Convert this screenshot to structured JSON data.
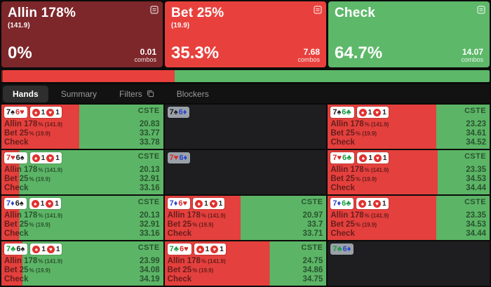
{
  "colors": {
    "allin": "#7d272b",
    "bet": "#e8413d",
    "check": "#5db869",
    "cell_red": "#e4403d",
    "cell_green": "#5cb566",
    "dim_cell": "#1e1e20",
    "suits": {
      "s": "#1a1a1a",
      "h": "#d92b2b",
      "d": "#2b46cc",
      "c": "#1a9c42"
    }
  },
  "suit_glyphs": {
    "s": "♠",
    "h": "♥",
    "d": "♦",
    "c": "♣"
  },
  "header": {
    "boxes": [
      {
        "action": "allin",
        "title": "Allin 178%",
        "subtitle": "(141.9)",
        "percent": "0%",
        "combos": "0.01",
        "combos_label": "combos",
        "color": "#7d272b"
      },
      {
        "action": "bet",
        "title": "Bet 25%",
        "subtitle": "(19.9)",
        "percent": "35.3%",
        "combos": "7.68",
        "combos_label": "combos",
        "color": "#e8413d"
      },
      {
        "action": "check",
        "title": "Check",
        "subtitle": "",
        "percent": "64.7%",
        "combos": "14.07",
        "combos_label": "combos",
        "color": "#5db869"
      }
    ],
    "strategy_bar": [
      {
        "action": "allin",
        "color": "#7d272b",
        "percent": 0.3
      },
      {
        "action": "bet",
        "color": "#e8413d",
        "percent": 35.2
      },
      {
        "action": "check",
        "color": "#5db869",
        "percent": 64.5
      }
    ]
  },
  "tabs": [
    {
      "label": "Hands",
      "active": true,
      "icon": ""
    },
    {
      "label": "Summary",
      "active": false,
      "icon": ""
    },
    {
      "label": "Filters",
      "active": false,
      "icon": "copy"
    },
    {
      "label": "Blockers",
      "active": false,
      "icon": ""
    }
  ],
  "grid": {
    "tag": "CSTE",
    "suit_counts": [
      {
        "suit": "s",
        "count": "1"
      },
      {
        "suit": "h",
        "count": "1"
      }
    ],
    "action_labels": [
      {
        "name": "Allin 178",
        "suffix": "% (141.9)"
      },
      {
        "name": "Bet 25",
        "suffix": "% (19.9)"
      },
      {
        "name": "Check",
        "suffix": ""
      }
    ],
    "cells": [
      {
        "cards": [
          {
            "rank": "7",
            "suit": "s"
          },
          {
            "rank": "6",
            "suit": "h"
          }
        ],
        "dimmed": false,
        "red_pct": 48,
        "values": [
          "20.83",
          "33.77",
          "33.78"
        ]
      },
      {
        "cards": [
          {
            "rank": "7",
            "suit": "s"
          },
          {
            "rank": "6",
            "suit": "d"
          }
        ],
        "dimmed": true,
        "red_pct": 0,
        "values": []
      },
      {
        "cards": [
          {
            "rank": "7",
            "suit": "s"
          },
          {
            "rank": "6",
            "suit": "c"
          }
        ],
        "dimmed": false,
        "red_pct": 67,
        "values": [
          "23.23",
          "34.61",
          "34.52"
        ]
      },
      {
        "cards": [
          {
            "rank": "7",
            "suit": "h"
          },
          {
            "rank": "6",
            "suit": "s"
          }
        ],
        "dimmed": false,
        "red_pct": 11,
        "values": [
          "20.13",
          "32.91",
          "33.16"
        ]
      },
      {
        "cards": [
          {
            "rank": "7",
            "suit": "h"
          },
          {
            "rank": "6",
            "suit": "d"
          }
        ],
        "dimmed": true,
        "red_pct": 0,
        "values": []
      },
      {
        "cards": [
          {
            "rank": "7",
            "suit": "h"
          },
          {
            "rank": "6",
            "suit": "c"
          }
        ],
        "dimmed": false,
        "red_pct": 68,
        "values": [
          "23.35",
          "34.53",
          "34.44"
        ]
      },
      {
        "cards": [
          {
            "rank": "7",
            "suit": "d"
          },
          {
            "rank": "6",
            "suit": "s"
          }
        ],
        "dimmed": false,
        "red_pct": 11,
        "values": [
          "20.13",
          "32.91",
          "33.16"
        ]
      },
      {
        "cards": [
          {
            "rank": "7",
            "suit": "d"
          },
          {
            "rank": "6",
            "suit": "h"
          }
        ],
        "dimmed": false,
        "red_pct": 47,
        "values": [
          "20.97",
          "33.7",
          "33.71"
        ]
      },
      {
        "cards": [
          {
            "rank": "7",
            "suit": "d"
          },
          {
            "rank": "6",
            "suit": "c"
          }
        ],
        "dimmed": false,
        "red_pct": 67,
        "values": [
          "23.35",
          "34.53",
          "34.44"
        ]
      },
      {
        "cards": [
          {
            "rank": "7",
            "suit": "c"
          },
          {
            "rank": "6",
            "suit": "s"
          }
        ],
        "dimmed": false,
        "red_pct": 13,
        "values": [
          "23.99",
          "34.08",
          "34.19"
        ]
      },
      {
        "cards": [
          {
            "rank": "7",
            "suit": "c"
          },
          {
            "rank": "6",
            "suit": "h"
          }
        ],
        "dimmed": false,
        "red_pct": 65,
        "values": [
          "24.75",
          "34.86",
          "34.75"
        ]
      },
      {
        "cards": [
          {
            "rank": "7",
            "suit": "c"
          },
          {
            "rank": "6",
            "suit": "d"
          }
        ],
        "dimmed": true,
        "red_pct": 0,
        "values": []
      }
    ]
  }
}
